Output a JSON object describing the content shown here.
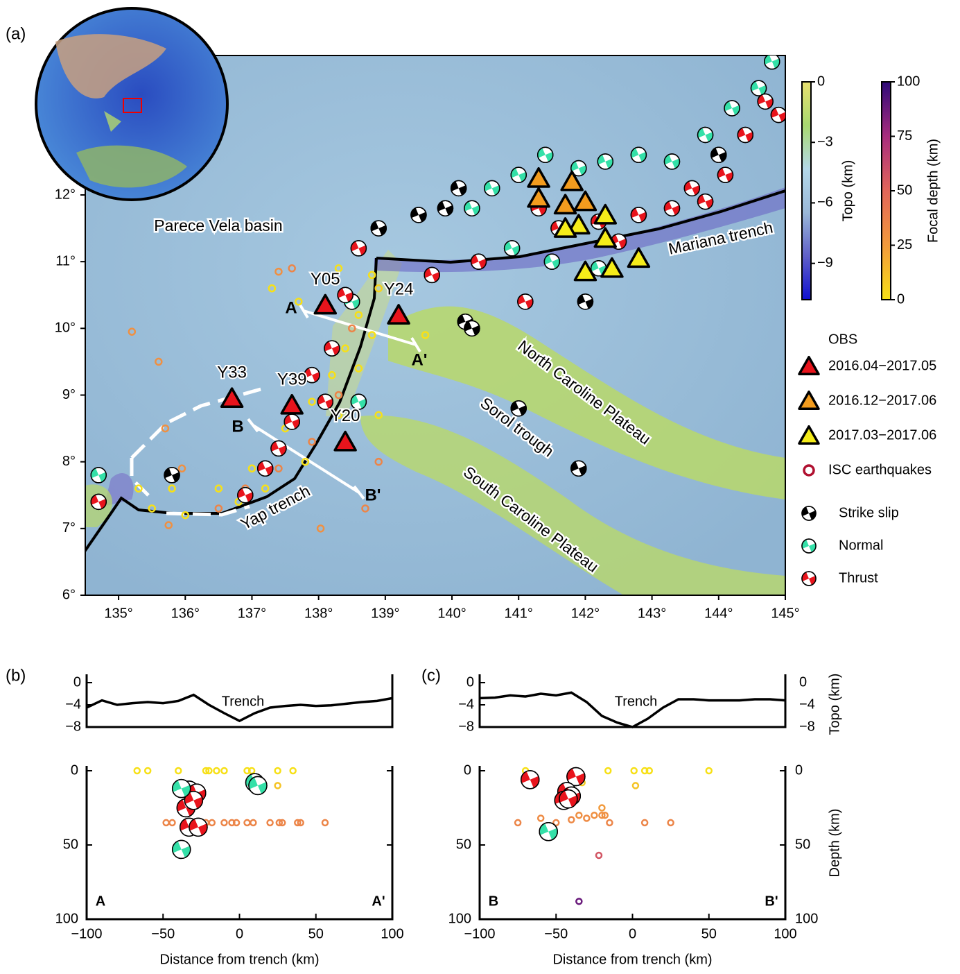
{
  "panel_labels": [
    "(a)",
    "(b)",
    "(c)"
  ],
  "map": {
    "xlim": [
      134.5,
      145
    ],
    "ylim": [
      6,
      14.09
    ],
    "xticks": [
      {
        "value": 135,
        "label": "135°"
      },
      {
        "value": 136,
        "label": "136°"
      },
      {
        "value": 137,
        "label": "137°"
      },
      {
        "value": 138,
        "label": "138°"
      },
      {
        "value": 139,
        "label": "139°"
      },
      {
        "value": 140,
        "label": "140°"
      },
      {
        "value": 141,
        "label": "141°"
      },
      {
        "value": 142,
        "label": "142°"
      },
      {
        "value": 143,
        "label": "143°"
      },
      {
        "value": 144,
        "label": "144°"
      },
      {
        "value": 145,
        "label": "145°"
      }
    ],
    "yticks": [
      {
        "value": 6,
        "label": "6°"
      },
      {
        "value": 7,
        "label": "7°"
      },
      {
        "value": 8,
        "label": "8°"
      },
      {
        "value": 9,
        "label": "9°"
      },
      {
        "value": 10,
        "label": "10°"
      },
      {
        "value": 11,
        "label": "11°"
      },
      {
        "value": 12,
        "label": "12°"
      }
    ],
    "place_labels": [
      "Parece Vela basin",
      "Mariana trench",
      "North Caroline Plateau",
      "Sorol trough",
      "South Caroline Plateau",
      "Yap trench"
    ],
    "profile_labels": [
      "A",
      "A'",
      "B",
      "B'"
    ],
    "legend_title": "OBS",
    "stations": [
      {
        "name": "2016.04−2017.05",
        "color": "#e8141c",
        "lon": [
          138.1,
          139.2,
          136.7,
          137.6,
          138.4
        ],
        "lat": [
          10.35,
          10.2,
          8.95,
          8.85,
          8.3
        ],
        "labels": [
          "Y05",
          "Y24",
          "Y33",
          "Y39",
          "Y20"
        ]
      },
      {
        "name": "2016.12−2017.06",
        "color": "#f39c1e",
        "lon": [
          141.3,
          141.8,
          141.3,
          141.7,
          142.0
        ],
        "lat": [
          12.25,
          12.2,
          11.95,
          11.85,
          11.9
        ]
      },
      {
        "name": "2017.03−2017.06",
        "color": "#f5ec1a",
        "lon": [
          142.3,
          141.9,
          141.7,
          142.3,
          142.0,
          142.4,
          142.8
        ],
        "lat": [
          11.7,
          11.55,
          11.5,
          11.35,
          10.85,
          10.9,
          11.05
        ]
      }
    ],
    "isc": {
      "name": "ISC earthquakes",
      "color": "#b01030",
      "lon": [
        138.3,
        138.6,
        138.9,
        138.4,
        138.8,
        138.2,
        138.6,
        137.9,
        138.3,
        137.5,
        137.8,
        137.2,
        136.8,
        136.5,
        136.0,
        135.5,
        135.3,
        138.9,
        139.6,
        138.8,
        137.3,
        137.7,
        137.0,
        135.8,
        138.5,
        138.3,
        137.9,
        137.4,
        136.9,
        138.7,
        138.9,
        137.6,
        136.5,
        135.2,
        135.6,
        135.95,
        135.7,
        135.75,
        138.03,
        137.4
      ],
      "lat": [
        10.9,
        10.2,
        10.6,
        9.7,
        9.9,
        9.3,
        9.4,
        8.9,
        8.7,
        8.5,
        8.0,
        7.6,
        7.4,
        7.6,
        7.2,
        7.3,
        7.6,
        8.7,
        9.9,
        10.8,
        10.6,
        10.4,
        7.9,
        7.6,
        10.0,
        9.0,
        8.3,
        7.9,
        7.6,
        7.3,
        8.0,
        10.9,
        7.3,
        9.95,
        9.5,
        7.9,
        8.5,
        7.05,
        7.0,
        10.85
      ],
      "depth": [
        0,
        0,
        5,
        0,
        0,
        0,
        0,
        0,
        0,
        0,
        0,
        0,
        0,
        0,
        0,
        0,
        0,
        0,
        0,
        0,
        0,
        0,
        0,
        0,
        35,
        35,
        35,
        35,
        35,
        35,
        35,
        35,
        35,
        30,
        30,
        30,
        30,
        30,
        30,
        30
      ]
    },
    "mechanisms": [
      {
        "name": "Strike slip",
        "color": "#000000",
        "lon": [
          139.5,
          139.9,
          140.1,
          140.2,
          140.3,
          142.0,
          141.0,
          141.9,
          135.8,
          138.9,
          144.0
        ],
        "lat": [
          11.7,
          11.8,
          12.1,
          10.1,
          10.0,
          10.4,
          8.8,
          7.9,
          7.8,
          11.5,
          12.6
        ]
      },
      {
        "name": "Normal",
        "color": "#34e0a8",
        "lon": [
          140.3,
          140.6,
          141.0,
          141.4,
          141.9,
          142.3,
          142.8,
          143.3,
          143.8,
          144.2,
          144.6,
          140.9,
          141.5,
          142.2,
          144.8,
          138.5,
          138.6,
          134.7
        ],
        "lat": [
          11.8,
          12.1,
          12.3,
          12.6,
          12.4,
          12.5,
          12.6,
          12.5,
          12.9,
          13.3,
          13.6,
          11.2,
          11.0,
          10.9,
          14.0,
          10.4,
          8.9,
          7.8
        ]
      },
      {
        "name": "Thrust",
        "color": "#e8141c",
        "lon": [
          141.6,
          142.2,
          142.8,
          143.3,
          143.6,
          144.1,
          144.4,
          144.7,
          140.4,
          141.1,
          139.7,
          143.8,
          144.9,
          142.5,
          141.3,
          138.6,
          138.4,
          138.2,
          137.9,
          137.6,
          137.4,
          137.2,
          136.9,
          134.7,
          138.1
        ],
        "lat": [
          11.5,
          11.6,
          11.7,
          11.8,
          12.1,
          12.3,
          12.9,
          13.4,
          11.0,
          10.4,
          10.8,
          11.9,
          13.2,
          11.3,
          11.8,
          11.2,
          10.5,
          9.7,
          9.3,
          8.6,
          8.2,
          7.9,
          7.5,
          7.4,
          8.9
        ]
      }
    ],
    "topo_colorbar": {
      "title": "Topo (km)",
      "lim": [
        -10.8,
        0
      ],
      "ticks": [
        0,
        {
          "value": -3,
          "label": "−3"
        },
        {
          "value": -6,
          "label": "−6"
        },
        {
          "value": -9,
          "label": "−9"
        }
      ],
      "colors": [
        "#1010d0",
        "#6060c8",
        "#9ab8d8",
        "#b4d8e8",
        "#a8d870",
        "#e8e070"
      ]
    },
    "depth_colorbar": {
      "title": "Focal depth (km)",
      "lim": [
        0,
        100
      ],
      "ticks": [
        0,
        25,
        50,
        75,
        100
      ],
      "colors": [
        "#f7e017",
        "#f29a3c",
        "#e2665a",
        "#a82c7e",
        "#2e0a78"
      ]
    }
  },
  "sections": [
    {
      "end_labels": [
        "A",
        "A'"
      ],
      "topo_annotation": "Trench",
      "xlabel": "Distance from trench (km)",
      "right_tick_labels": false,
      "xlim": [
        -100,
        100
      ],
      "xticks": [
        {
          "value": -100,
          "label": "−100"
        },
        {
          "value": -50,
          "label": "−50"
        },
        0,
        50,
        100
      ],
      "topo_ylim": [
        -8,
        0
      ],
      "topo_yticks": [
        0,
        {
          "value": -4,
          "label": "−4"
        },
        {
          "value": -8,
          "label": "−8"
        }
      ],
      "depth_lim": [
        0,
        100
      ],
      "depth_ticks": [
        0,
        50,
        100
      ],
      "topo": {
        "x": [
          -100,
          -90,
          -80,
          -70,
          -60,
          -50,
          -40,
          -30,
          -20,
          -10,
          0,
          10,
          20,
          30,
          40,
          50,
          60,
          70,
          80,
          90,
          100
        ],
        "values": [
          -4.5,
          -3.2,
          -4.0,
          -3.7,
          -3.5,
          -3.7,
          -3.3,
          -2.2,
          -4.0,
          -5.5,
          -6.9,
          -5.5,
          -4.5,
          -4.2,
          -4.0,
          -4.2,
          -4.1,
          -3.8,
          -3.5,
          -3.3,
          -2.8
        ]
      },
      "isc": {
        "x": [
          -67,
          -60,
          -40,
          -22,
          -20,
          -15,
          -10,
          5,
          8,
          25,
          35,
          25,
          -48,
          -44,
          -22,
          -18,
          -10,
          -5,
          -2,
          5,
          9,
          20,
          26,
          28,
          38,
          40,
          56
        ],
        "depth": [
          0,
          0,
          0,
          0,
          0,
          0,
          0,
          0,
          0,
          0,
          0,
          10,
          35,
          35,
          35,
          35,
          35,
          35,
          35,
          35,
          35,
          35,
          35,
          35,
          35,
          35,
          35
        ]
      },
      "mechanisms": [
        {
          "color": "#e8141c",
          "x": [
            -33,
            -28,
            -35,
            -30,
            -33,
            -27
          ],
          "depth": [
            13,
            15,
            25,
            20,
            38,
            38
          ]
        },
        {
          "color": "#34e0a8",
          "x": [
            -38,
            10,
            12,
            -38
          ],
          "depth": [
            12,
            8,
            10,
            53
          ]
        }
      ]
    },
    {
      "end_labels": [
        "B",
        "B'"
      ],
      "topo_annotation": "Trench",
      "xlabel": "Distance from trench (km)",
      "right_tick_labels": true,
      "topo_title": "Topo (km)",
      "depth_title": "Depth (km)",
      "xlim": [
        -100,
        100
      ],
      "xticks": [
        {
          "value": -100,
          "label": "−100"
        },
        {
          "value": -50,
          "label": "−50"
        },
        0,
        50,
        100
      ],
      "topo_ylim": [
        -8,
        0
      ],
      "topo_yticks": [
        0,
        {
          "value": -4,
          "label": "−4"
        },
        {
          "value": -8,
          "label": "−8"
        }
      ],
      "depth_lim": [
        0,
        100
      ],
      "depth_ticks": [
        0,
        50,
        100
      ],
      "topo": {
        "x": [
          -100,
          -90,
          -80,
          -70,
          -60,
          -50,
          -40,
          -30,
          -20,
          -10,
          0,
          10,
          20,
          30,
          40,
          50,
          60,
          70,
          80,
          90,
          100
        ],
        "values": [
          -2.8,
          -2.7,
          -2.3,
          -2.5,
          -2.0,
          -2.3,
          -1.8,
          -3.5,
          -6.0,
          -7.2,
          -8.0,
          -6.5,
          -4.5,
          -3.0,
          -3.0,
          -3.2,
          -3.2,
          -3.2,
          -3.0,
          -3.0,
          -3.2
        ]
      },
      "isc": {
        "x": [
          -70,
          -16,
          1,
          8,
          11,
          50,
          -33,
          2,
          -75,
          -60,
          -50,
          -40,
          -35,
          -30,
          -25,
          -20,
          -15,
          -20,
          -18,
          8,
          25,
          -22,
          -35
        ],
        "depth": [
          0,
          0,
          0,
          0,
          0,
          0,
          8,
          10,
          35,
          32,
          35,
          33,
          30,
          32,
          30,
          30,
          35,
          25,
          30,
          35,
          35,
          57,
          88
        ]
      },
      "mechanisms": [
        {
          "color": "#e8141c",
          "x": [
            -67,
            -37,
            -43,
            -40,
            -45,
            -42
          ],
          "depth": [
            6,
            4,
            14,
            17,
            20,
            19
          ]
        },
        {
          "color": "#34e0a8",
          "x": [
            -55
          ],
          "depth": [
            41
          ]
        }
      ]
    }
  ]
}
